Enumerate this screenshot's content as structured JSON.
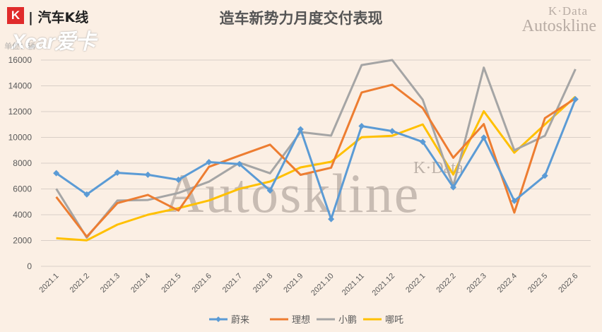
{
  "header": {
    "brand_k": "K",
    "brand_text": "| 汽车K线",
    "watermark_small_k": "K·Data",
    "watermark_small": "Autoskline",
    "unit_label": "单位：辆",
    "xcar_logo": "Xcar爱卡"
  },
  "watermark": {
    "k": "K·Data",
    "main": "Autoskline"
  },
  "chart_data": {
    "type": "line",
    "title": "造车新势力月度交付表现",
    "categories": [
      "2021.1",
      "2021.2",
      "2021.3",
      "2021.4",
      "2021.5",
      "2021.6",
      "2021.7",
      "2021.8",
      "2021.9",
      "2021.10",
      "2021.11",
      "2021.12",
      "2022.1",
      "2022.2",
      "2022.3",
      "2022.4",
      "2022.5",
      "2022.6"
    ],
    "ylim": [
      0,
      16000
    ],
    "yticks": [
      0,
      2000,
      4000,
      6000,
      8000,
      10000,
      12000,
      14000,
      16000
    ],
    "grid": true,
    "legend_position": "bottom",
    "series": [
      {
        "name": "蔚来",
        "color": "#5b9bd5",
        "marker": "diamond",
        "values": [
          7225,
          5578,
          7257,
          7102,
          6711,
          8083,
          7931,
          5880,
          10628,
          3667,
          10878,
          10489,
          9652,
          6131,
          9985,
          5074,
          7024,
          12961
        ]
      },
      {
        "name": "理想",
        "color": "#ed7d31",
        "marker": "none",
        "values": [
          5379,
          2300,
          4900,
          5539,
          4323,
          7713,
          8589,
          9433,
          7094,
          7649,
          13485,
          14087,
          12268,
          8414,
          11034,
          4167,
          11496,
          13024
        ]
      },
      {
        "name": "小鹏",
        "color": "#a5a5a5",
        "marker": "none",
        "values": [
          6015,
          2223,
          5102,
          5147,
          5686,
          6565,
          8040,
          7214,
          10412,
          10138,
          15613,
          16000,
          12922,
          6225,
          15414,
          9002,
          10125,
          15295
        ]
      },
      {
        "name": "哪吒",
        "color": "#ffc000",
        "marker": "none",
        "values": [
          2175,
          2018,
          3231,
          4000,
          4508,
          5108,
          6011,
          6578,
          7670,
          8107,
          10013,
          10127,
          11009,
          7117,
          12026,
          8813,
          11009,
          13157
        ]
      }
    ]
  }
}
